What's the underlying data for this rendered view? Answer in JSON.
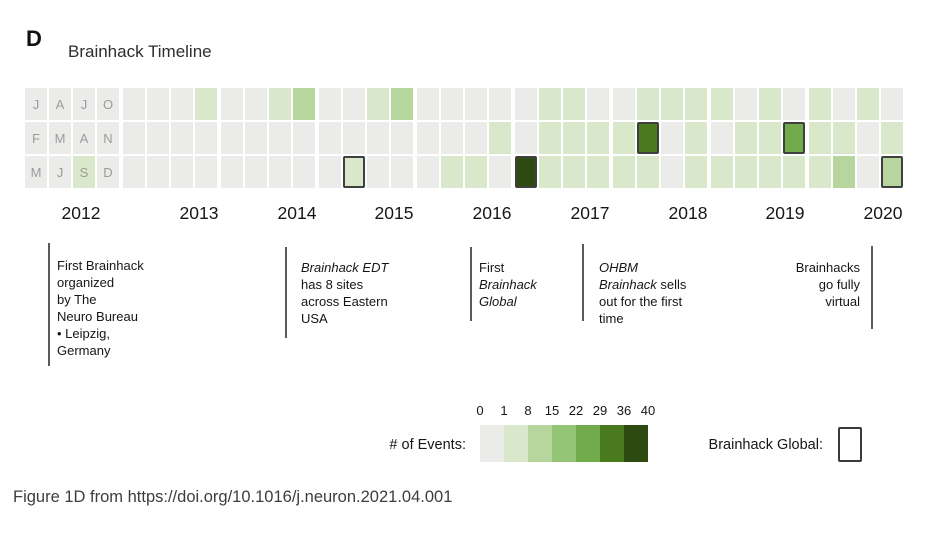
{
  "panel_label": "D",
  "title": "Brainhack Timeline",
  "caption": "Figure 1D from https://doi.org/10.1016/j.neuron.2021.04.001",
  "chart_data": {
    "type": "heatmap",
    "title": "Brainhack Timeline",
    "description": "Monthly number of Brainhack events 2012-2020. Each year block has 4 quarter columns; rows are months within the quarter. Row 1 = Jan/Apr/Jul/Oct, Row 2 = Feb/May/Aug/Nov, Row 3 = Mar/Jun/Sep/Dec. Outlined cells are Brainhack Global events.",
    "row_labels": [
      [
        "J",
        "A",
        "J",
        "O"
      ],
      [
        "F",
        "M",
        "A",
        "N"
      ],
      [
        "M",
        "J",
        "S",
        "D"
      ]
    ],
    "bins": {
      "boundaries": [
        0,
        1,
        8,
        15,
        22,
        29,
        36,
        40
      ],
      "colors": [
        "#ebebea",
        "#d9e8ca",
        "#b6d69e",
        "#94c577",
        "#72ab4b",
        "#497a1e",
        "#2d4a10"
      ],
      "global_event_border": "#3f3f3f"
    },
    "years": [
      {
        "label": "2012",
        "show_month_letters": true,
        "grid": [
          [
            0,
            0,
            0,
            0
          ],
          [
            0,
            0,
            0,
            0
          ],
          [
            0,
            0,
            1,
            0
          ]
        ],
        "notes": "Sep 2012: first Brainhack"
      },
      {
        "label": "2013",
        "grid": [
          [
            0,
            0,
            0,
            1
          ],
          [
            0,
            0,
            0,
            0
          ],
          [
            0,
            0,
            0,
            0
          ]
        ]
      },
      {
        "label": "2014",
        "grid": [
          [
            0,
            0,
            1,
            2
          ],
          [
            0,
            0,
            0,
            0
          ],
          [
            0,
            0,
            0,
            0
          ]
        ]
      },
      {
        "label": "2015",
        "grid": [
          [
            0,
            0,
            1,
            2
          ],
          [
            0,
            0,
            0,
            0
          ],
          [
            0,
            1,
            0,
            0
          ]
        ],
        "global_events": [
          {
            "row": 2,
            "col": 1,
            "month": "Jun 2015"
          }
        ]
      },
      {
        "label": "2016",
        "grid": [
          [
            0,
            0,
            0,
            0
          ],
          [
            0,
            0,
            0,
            1
          ],
          [
            0,
            1,
            1,
            0
          ]
        ]
      },
      {
        "label": "2017",
        "grid": [
          [
            0,
            1,
            1,
            0
          ],
          [
            0,
            1,
            1,
            1
          ],
          [
            6,
            1,
            1,
            1
          ]
        ],
        "global_events": [
          {
            "row": 2,
            "col": 0,
            "month": "Mar 2017"
          }
        ]
      },
      {
        "label": "2018",
        "grid": [
          [
            0,
            1,
            1,
            1
          ],
          [
            1,
            5,
            0,
            1
          ],
          [
            1,
            1,
            0,
            1
          ]
        ],
        "global_events": [
          {
            "row": 1,
            "col": 1,
            "month": "May 2018"
          }
        ]
      },
      {
        "label": "2019",
        "grid": [
          [
            1,
            0,
            1,
            0
          ],
          [
            0,
            1,
            1,
            4
          ],
          [
            1,
            1,
            1,
            1
          ]
        ],
        "global_events": [
          {
            "row": 1,
            "col": 3,
            "month": "Nov 2019"
          }
        ]
      },
      {
        "label": "2020",
        "grid": [
          [
            1,
            0,
            1,
            0
          ],
          [
            1,
            1,
            0,
            1
          ],
          [
            1,
            2,
            0,
            2
          ]
        ],
        "global_events": [
          {
            "row": 2,
            "col": 3,
            "month": "Dec 2020"
          }
        ]
      }
    ],
    "legend_position": "bottom"
  },
  "legend": {
    "events_label": "# of Events:",
    "tick_labels": [
      "0",
      "1",
      "8",
      "15",
      "22",
      "29",
      "36",
      "40"
    ],
    "global_label": "Brainhack Global:"
  },
  "annotations": [
    {
      "id": "first-brainhack",
      "lines": [
        [
          {
            "t": "First Brainhack"
          }
        ],
        [
          {
            "t": "organized"
          }
        ],
        [
          {
            "t": "by The"
          }
        ],
        [
          {
            "t": "Neuro Bureau"
          }
        ],
        [
          {
            "t": "• Leipzig,"
          }
        ],
        [
          {
            "t": "Germany"
          }
        ]
      ]
    },
    {
      "id": "brainhack-edt",
      "lines": [
        [
          {
            "t": "Brainhack EDT",
            "i": true
          }
        ],
        [
          {
            "t": "has 8 sites"
          }
        ],
        [
          {
            "t": "across Eastern"
          }
        ],
        [
          {
            "t": "USA"
          }
        ]
      ]
    },
    {
      "id": "first-global",
      "lines": [
        [
          {
            "t": "First"
          }
        ],
        [
          {
            "t": "Brainhack",
            "i": true
          }
        ],
        [
          {
            "t": "Global",
            "i": true
          }
        ]
      ]
    },
    {
      "id": "ohbm-sellout",
      "lines": [
        [
          {
            "t": "OHBM",
            "i": true
          }
        ],
        [
          {
            "t": "Brainhack",
            "i": true
          },
          {
            "t": " sells"
          }
        ],
        [
          {
            "t": "out for the first"
          }
        ],
        [
          {
            "t": "time"
          }
        ]
      ]
    },
    {
      "id": "fully-virtual",
      "lines": [
        [
          {
            "t": "Brainhacks"
          }
        ],
        [
          {
            "t": "go fully"
          }
        ],
        [
          {
            "t": "virtual"
          }
        ]
      ]
    }
  ]
}
